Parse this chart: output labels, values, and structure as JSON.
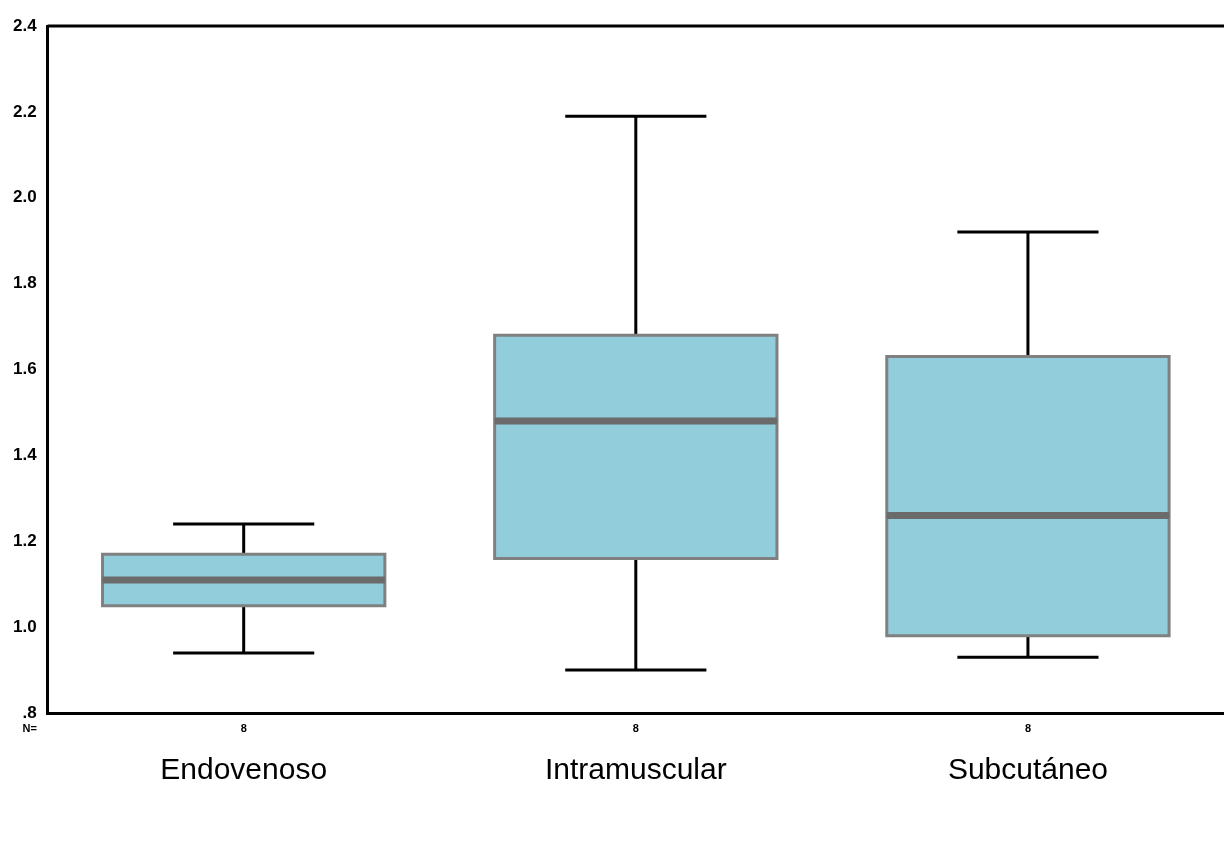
{
  "chart_data": {
    "type": "box",
    "categories": [
      "Endovenoso",
      "Intramuscular",
      "Subcutáneo"
    ],
    "color": "#92cddc",
    "boxes": [
      {
        "low": 0.94,
        "q1": 1.05,
        "median": 1.11,
        "q3": 1.17,
        "high": 1.24
      },
      {
        "low": 0.9,
        "q1": 1.16,
        "median": 1.48,
        "q3": 1.68,
        "high": 2.19
      },
      {
        "low": 0.93,
        "q1": 0.98,
        "median": 1.26,
        "q3": 1.63,
        "high": 1.92
      }
    ],
    "ylim": [
      0.8,
      2.4
    ],
    "yticks": [
      {
        "value": 0.8,
        "label": ".8"
      },
      {
        "value": 1,
        "label": "1.0"
      },
      1.2,
      1.4,
      1.6,
      1.8,
      {
        "value": 2,
        "label": "2.0"
      },
      2.2,
      2.4
    ],
    "grid": false,
    "annotations": [
      "N=",
      "8",
      "8",
      "8"
    ]
  }
}
